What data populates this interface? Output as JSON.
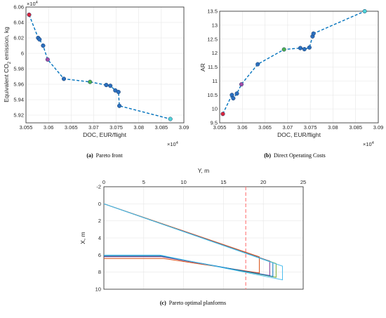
{
  "figure": {
    "captions": [
      {
        "tag": "(a)",
        "text": "Pareto front"
      },
      {
        "tag": "(b)",
        "text": "Direct Operating Costs"
      },
      {
        "tag": "(c)",
        "text": "Pareto optimal planforms"
      }
    ]
  },
  "colors": {
    "series_blue": "#0072bd",
    "marker_blue": "#2a6fbf",
    "marker_red": "#d7263d",
    "marker_purple": "#a14ca8",
    "marker_green": "#4caf50",
    "marker_cyan": "#4fd3d8",
    "reference_line": "#ff7f7f"
  },
  "chart_data": [
    {
      "type": "scatter",
      "panel": "a",
      "xlabel": "DOC, EUR/flight",
      "ylabel_main": "Equivalent CO",
      "ylabel_sub": "2",
      "ylabel_tail": " emission, kg",
      "x_multiplier": "×10",
      "x_multiplier_exp": "4",
      "y_multiplier": "×10",
      "y_multiplier_exp": "4",
      "xlim": [
        3.055,
        3.09
      ],
      "ylim": [
        5.91,
        6.06
      ],
      "xticks": [
        3.055,
        3.06,
        3.065,
        3.07,
        3.075,
        3.08,
        3.085,
        3.09
      ],
      "xtick_labels": [
        "3.055",
        "3.06",
        "3.065",
        "3.07",
        "3.075",
        "3.08",
        "3.085",
        "3.09"
      ],
      "yticks": [
        5.92,
        5.94,
        5.96,
        5.98,
        6.0,
        6.02,
        6.04,
        6.06
      ],
      "ytick_labels": [
        "5.92",
        "5.94",
        "5.96",
        "5.98",
        "6",
        "6.02",
        "6.04",
        "6.06"
      ],
      "grid": true,
      "line_style": "dashed",
      "points": [
        {
          "x": 3.0557,
          "y": 6.05,
          "marker": "red"
        },
        {
          "x": 3.0577,
          "y": 6.02,
          "marker": "blue"
        },
        {
          "x": 3.058,
          "y": 6.018,
          "marker": "blue"
        },
        {
          "x": 3.0588,
          "y": 6.01,
          "marker": "blue"
        },
        {
          "x": 3.0598,
          "y": 5.992,
          "marker": "purple"
        },
        {
          "x": 3.0634,
          "y": 5.967,
          "marker": "blue"
        },
        {
          "x": 3.0692,
          "y": 5.963,
          "marker": "green"
        },
        {
          "x": 3.0728,
          "y": 5.959,
          "marker": "blue"
        },
        {
          "x": 3.0737,
          "y": 5.958,
          "marker": "blue"
        },
        {
          "x": 3.0748,
          "y": 5.952,
          "marker": "blue"
        },
        {
          "x": 3.0755,
          "y": 5.95,
          "marker": "blue"
        },
        {
          "x": 3.0757,
          "y": 5.932,
          "marker": "blue"
        },
        {
          "x": 3.087,
          "y": 5.915,
          "marker": "cyan"
        }
      ]
    },
    {
      "type": "scatter",
      "panel": "b",
      "xlabel": "DOC, EUR/flight",
      "ylabel": "AR",
      "x_multiplier": "×10",
      "x_multiplier_exp": "4",
      "xlim": [
        3.055,
        3.09
      ],
      "ylim": [
        9.5,
        13.5
      ],
      "xticks": [
        3.055,
        3.06,
        3.065,
        3.07,
        3.075,
        3.08,
        3.085,
        3.09
      ],
      "xtick_labels": [
        "3.055",
        "3.06",
        "3.065",
        "3.07",
        "3.075",
        "3.08",
        "3.085",
        "3.09"
      ],
      "yticks": [
        9.5,
        10,
        10.5,
        11,
        11.5,
        12,
        12.5,
        13,
        13.5
      ],
      "ytick_labels": [
        "9.5",
        "10",
        "10.5",
        "11",
        "11.5",
        "12",
        "12.5",
        "13",
        "13.5"
      ],
      "grid": true,
      "line_style": "dashed",
      "points": [
        {
          "x": 3.0557,
          "y": 9.82,
          "marker": "red"
        },
        {
          "x": 3.0577,
          "y": 10.5,
          "marker": "blue"
        },
        {
          "x": 3.058,
          "y": 10.38,
          "marker": "blue"
        },
        {
          "x": 3.0588,
          "y": 10.55,
          "marker": "blue"
        },
        {
          "x": 3.0598,
          "y": 10.88,
          "marker": "purple"
        },
        {
          "x": 3.0634,
          "y": 11.6,
          "marker": "blue"
        },
        {
          "x": 3.0692,
          "y": 12.13,
          "marker": "green"
        },
        {
          "x": 3.0728,
          "y": 12.18,
          "marker": "blue"
        },
        {
          "x": 3.0737,
          "y": 12.14,
          "marker": "blue"
        },
        {
          "x": 3.0748,
          "y": 12.2,
          "marker": "blue"
        },
        {
          "x": 3.0755,
          "y": 12.6,
          "marker": "blue"
        },
        {
          "x": 3.0757,
          "y": 12.7,
          "marker": "blue"
        },
        {
          "x": 3.087,
          "y": 13.5,
          "marker": "cyan"
        }
      ]
    },
    {
      "type": "line",
      "panel": "c",
      "xlabel": "Y, m",
      "ylabel": "X, m",
      "xlim": [
        0,
        25
      ],
      "ylim": [
        -2,
        10
      ],
      "y_reversed": true,
      "x_axis_position": "top",
      "xticks": [
        0,
        5,
        10,
        15,
        20,
        25
      ],
      "xtick_labels": [
        "0",
        "5",
        "10",
        "15",
        "20",
        "25"
      ],
      "yticks": [
        -2,
        0,
        2,
        4,
        6,
        8,
        10
      ],
      "ytick_labels": [
        "-2",
        "0",
        "2",
        "4",
        "6",
        "8",
        "10"
      ],
      "grid": true,
      "reference_line": {
        "y": 17.8,
        "style": "dashed"
      },
      "series": [
        {
          "color": "#d95319",
          "points": [
            [
              0,
              0
            ],
            [
              19.5,
              6.2
            ],
            [
              19.5,
              8.1
            ],
            [
              7.5,
              6.4
            ],
            [
              0,
              6.4
            ]
          ]
        },
        {
          "color": "#7e2f8e",
          "points": [
            [
              0,
              0
            ],
            [
              20.8,
              6.7
            ],
            [
              20.8,
              8.4
            ],
            [
              7.3,
              6.2
            ],
            [
              0,
              6.2
            ]
          ]
        },
        {
          "color": "#77ac30",
          "points": [
            [
              0,
              0
            ],
            [
              21.6,
              7.0
            ],
            [
              21.6,
              8.6
            ],
            [
              7.2,
              6.1
            ],
            [
              0,
              6.1
            ]
          ]
        },
        {
          "color": "#0072bd",
          "points": [
            [
              0,
              0
            ],
            [
              21.2,
              6.9
            ],
            [
              21.2,
              8.5
            ],
            [
              7.2,
              6.1
            ],
            [
              0,
              6.1
            ]
          ]
        },
        {
          "color": "#4dbeee",
          "points": [
            [
              0,
              0
            ],
            [
              22.4,
              7.3
            ],
            [
              22.4,
              8.9
            ],
            [
              7.0,
              6.0
            ],
            [
              0,
              6.0
            ]
          ]
        }
      ]
    }
  ]
}
